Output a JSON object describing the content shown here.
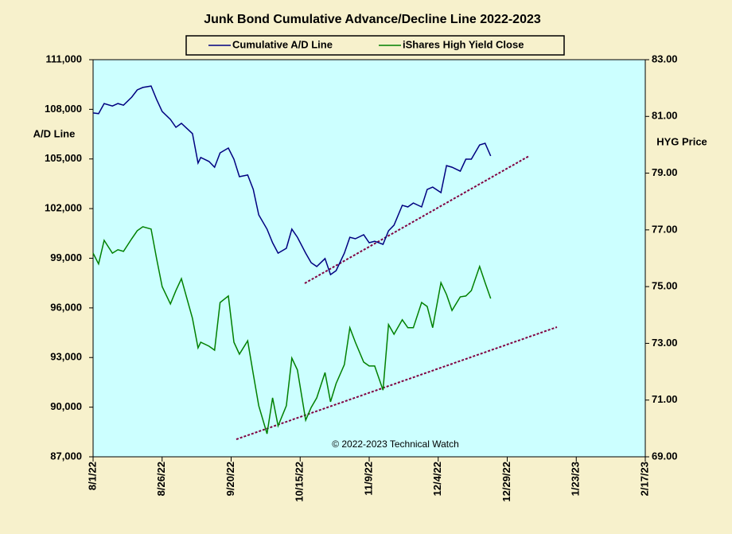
{
  "chart_data": {
    "type": "line",
    "title": "Junk Bond Cumulative  Advance/Decline  Line  2022-2023",
    "y_label": "A/D Line",
    "y2_label": "HYG Price",
    "annotation": "© 2022-2023  Technical  Watch",
    "x": [
      "2022-08-01",
      "2022-08-03",
      "2022-08-05",
      "2022-08-08",
      "2022-08-10",
      "2022-08-12",
      "2022-08-15",
      "2022-08-17",
      "2022-08-19",
      "2022-08-22",
      "2022-08-24",
      "2022-08-26",
      "2022-08-29",
      "2022-08-31",
      "2022-09-02",
      "2022-09-06",
      "2022-09-08",
      "2022-09-09",
      "2022-09-12",
      "2022-09-14",
      "2022-09-16",
      "2022-09-19",
      "2022-09-21",
      "2022-09-23",
      "2022-09-26",
      "2022-09-28",
      "2022-09-30",
      "2022-10-03",
      "2022-10-05",
      "2022-10-07",
      "2022-10-10",
      "2022-10-12",
      "2022-10-14",
      "2022-10-17",
      "2022-10-19",
      "2022-10-21",
      "2022-10-24",
      "2022-10-26",
      "2022-10-28",
      "2022-10-31",
      "2022-11-02",
      "2022-11-04",
      "2022-11-07",
      "2022-11-09",
      "2022-11-11",
      "2022-11-14",
      "2022-11-16",
      "2022-11-18",
      "2022-11-21",
      "2022-11-23",
      "2022-11-25",
      "2022-11-28",
      "2022-11-30",
      "2022-12-02",
      "2022-12-05",
      "2022-12-07",
      "2022-12-09",
      "2022-12-12",
      "2022-12-14",
      "2022-12-16",
      "2022-12-19",
      "2022-12-21",
      "2022-12-23"
    ],
    "series": [
      {
        "name": "Cumulative A/D Line",
        "color": "#000080",
        "axis": "y",
        "values": [
          107780,
          107740,
          108350,
          108200,
          108350,
          108250,
          108740,
          109170,
          109320,
          109410,
          108600,
          107870,
          107390,
          106910,
          107150,
          106530,
          104750,
          105090,
          104850,
          104500,
          105370,
          105660,
          104990,
          103930,
          104030,
          103160,
          101620,
          100760,
          99940,
          99310,
          99600,
          100760,
          100270,
          99310,
          98730,
          98500,
          98980,
          98010,
          98250,
          99310,
          100270,
          100180,
          100420,
          99940,
          100030,
          99840,
          100660,
          101000,
          102200,
          102100,
          102340,
          102100,
          103160,
          103300,
          102970,
          104600,
          104500,
          104260,
          104990,
          104990,
          105850,
          105950,
          105180
        ]
      },
      {
        "name": "iShares High Yield Close",
        "color": "#008000",
        "axis": "y2",
        "values": [
          76.18,
          75.8,
          76.63,
          76.18,
          76.3,
          76.24,
          76.69,
          76.97,
          77.11,
          77.03,
          75.99,
          75.0,
          74.39,
          74.86,
          75.28,
          73.88,
          72.84,
          73.04,
          72.9,
          72.76,
          74.44,
          74.67,
          73.04,
          72.62,
          73.09,
          71.92,
          70.8,
          69.81,
          71.08,
          70.09,
          70.8,
          72.48,
          72.06,
          70.29,
          70.74,
          71.08,
          71.97,
          70.94,
          71.58,
          72.25,
          73.55,
          73.04,
          72.34,
          72.2,
          72.2,
          71.35,
          73.66,
          73.32,
          73.83,
          73.55,
          73.55,
          74.44,
          74.3,
          73.55,
          75.14,
          74.72,
          74.16,
          74.64,
          74.67,
          74.86,
          75.71,
          75.14,
          74.58
        ]
      }
    ],
    "xlim": [
      "2022-08-01",
      "2023-02-17"
    ],
    "xticks": [
      {
        "value": "2022-08-01",
        "label": "8/1/22"
      },
      {
        "value": "2022-08-26",
        "label": "8/26/22"
      },
      {
        "value": "2022-09-20",
        "label": "9/20/22"
      },
      {
        "value": "2022-10-15",
        "label": "10/15/22"
      },
      {
        "value": "2022-11-09",
        "label": "11/9/22"
      },
      {
        "value": "2022-12-04",
        "label": "12/4/22"
      },
      {
        "value": "2022-12-29",
        "label": "12/29/22"
      },
      {
        "value": "2023-01-23",
        "label": "1/23/23"
      },
      {
        "value": "2023-02-17",
        "label": "2/17/23"
      }
    ],
    "ylim": [
      87000,
      111000
    ],
    "yticks": [
      {
        "value": 87000,
        "label": "87,000"
      },
      {
        "value": 90000,
        "label": "90,000"
      },
      {
        "value": 93000,
        "label": "93,000"
      },
      {
        "value": 96000,
        "label": "96,000"
      },
      {
        "value": 99000,
        "label": "99,000"
      },
      {
        "value": 102000,
        "label": "102,000"
      },
      {
        "value": 105000,
        "label": "105,000"
      },
      {
        "value": 108000,
        "label": "108,000"
      },
      {
        "value": 111000,
        "label": "111,000"
      }
    ],
    "y2lim": [
      69,
      83
    ],
    "y2ticks": [
      {
        "value": 69,
        "label": "69.00"
      },
      {
        "value": 71,
        "label": "71.00"
      },
      {
        "value": 73,
        "label": "73.00"
      },
      {
        "value": 75,
        "label": "75.00"
      },
      {
        "value": 77,
        "label": "77.00"
      },
      {
        "value": 79,
        "label": "79.00"
      },
      {
        "value": 81,
        "label": "81.00"
      },
      {
        "value": 83,
        "label": "83.00"
      }
    ],
    "plot_background": "#ccffff"
  }
}
